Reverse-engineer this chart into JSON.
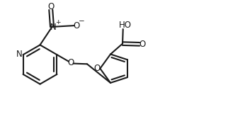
{
  "bg_color": "#ffffff",
  "line_color": "#1a1a1a",
  "line_width": 1.5,
  "text_color": "#1a1a1a",
  "font_size": 8.5,
  "figsize": [
    3.22,
    1.82
  ],
  "dpi": 100,
  "xlim": [
    0,
    9.0
  ],
  "ylim": [
    0,
    5.1
  ]
}
